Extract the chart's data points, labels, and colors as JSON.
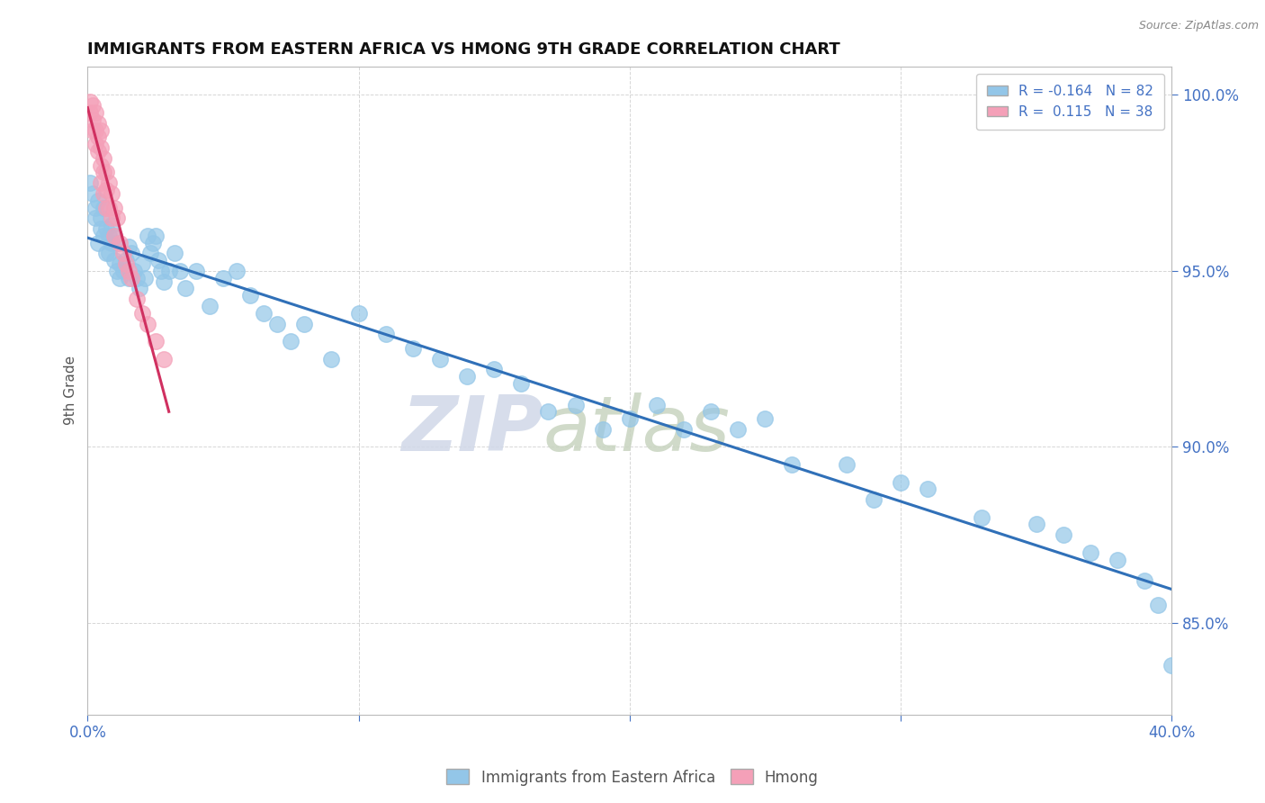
{
  "title": "IMMIGRANTS FROM EASTERN AFRICA VS HMONG 9TH GRADE CORRELATION CHART",
  "source": "Source: ZipAtlas.com",
  "xlabel_blue": "Immigrants from Eastern Africa",
  "xlabel_pink": "Hmong",
  "ylabel": "9th Grade",
  "xlim": [
    0.0,
    0.4
  ],
  "ylim": [
    0.824,
    1.008
  ],
  "blue_R": -0.164,
  "blue_N": 82,
  "pink_R": 0.115,
  "pink_N": 38,
  "blue_color": "#93C6E8",
  "pink_color": "#F4A0B8",
  "blue_line_color": "#3070B8",
  "pink_line_color": "#D03060",
  "watermark_zip": "ZIP",
  "watermark_atlas": "atlas",
  "blue_scatter_x": [
    0.001,
    0.002,
    0.003,
    0.003,
    0.004,
    0.004,
    0.005,
    0.005,
    0.006,
    0.006,
    0.007,
    0.007,
    0.008,
    0.008,
    0.009,
    0.009,
    0.01,
    0.01,
    0.011,
    0.011,
    0.012,
    0.012,
    0.013,
    0.014,
    0.015,
    0.015,
    0.016,
    0.017,
    0.018,
    0.019,
    0.02,
    0.021,
    0.022,
    0.023,
    0.024,
    0.025,
    0.026,
    0.027,
    0.028,
    0.03,
    0.032,
    0.034,
    0.036,
    0.04,
    0.045,
    0.05,
    0.055,
    0.06,
    0.065,
    0.07,
    0.075,
    0.08,
    0.09,
    0.1,
    0.11,
    0.12,
    0.13,
    0.14,
    0.15,
    0.16,
    0.17,
    0.18,
    0.19,
    0.2,
    0.21,
    0.22,
    0.23,
    0.24,
    0.25,
    0.26,
    0.28,
    0.29,
    0.3,
    0.31,
    0.33,
    0.35,
    0.36,
    0.37,
    0.38,
    0.39,
    0.395,
    0.4
  ],
  "blue_scatter_y": [
    0.975,
    0.972,
    0.968,
    0.965,
    0.97,
    0.958,
    0.965,
    0.962,
    0.968,
    0.96,
    0.962,
    0.955,
    0.96,
    0.955,
    0.963,
    0.958,
    0.96,
    0.953,
    0.958,
    0.95,
    0.952,
    0.948,
    0.95,
    0.953,
    0.957,
    0.948,
    0.955,
    0.95,
    0.948,
    0.945,
    0.952,
    0.948,
    0.96,
    0.955,
    0.958,
    0.96,
    0.953,
    0.95,
    0.947,
    0.95,
    0.955,
    0.95,
    0.945,
    0.95,
    0.94,
    0.948,
    0.95,
    0.943,
    0.938,
    0.935,
    0.93,
    0.935,
    0.925,
    0.938,
    0.932,
    0.928,
    0.925,
    0.92,
    0.922,
    0.918,
    0.91,
    0.912,
    0.905,
    0.908,
    0.912,
    0.905,
    0.91,
    0.905,
    0.908,
    0.895,
    0.895,
    0.885,
    0.89,
    0.888,
    0.88,
    0.878,
    0.875,
    0.87,
    0.868,
    0.862,
    0.855,
    0.838
  ],
  "pink_scatter_x": [
    0.001,
    0.001,
    0.002,
    0.002,
    0.002,
    0.003,
    0.003,
    0.003,
    0.004,
    0.004,
    0.004,
    0.005,
    0.005,
    0.005,
    0.005,
    0.006,
    0.006,
    0.006,
    0.007,
    0.007,
    0.007,
    0.008,
    0.008,
    0.009,
    0.009,
    0.01,
    0.01,
    0.011,
    0.012,
    0.013,
    0.014,
    0.015,
    0.016,
    0.018,
    0.02,
    0.022,
    0.025,
    0.028
  ],
  "pink_scatter_y": [
    0.998,
    0.995,
    0.997,
    0.993,
    0.99,
    0.995,
    0.99,
    0.986,
    0.992,
    0.988,
    0.984,
    0.99,
    0.985,
    0.98,
    0.975,
    0.982,
    0.978,
    0.972,
    0.978,
    0.973,
    0.968,
    0.975,
    0.968,
    0.972,
    0.965,
    0.968,
    0.96,
    0.965,
    0.958,
    0.955,
    0.952,
    0.95,
    0.948,
    0.942,
    0.938,
    0.935,
    0.93,
    0.925
  ]
}
